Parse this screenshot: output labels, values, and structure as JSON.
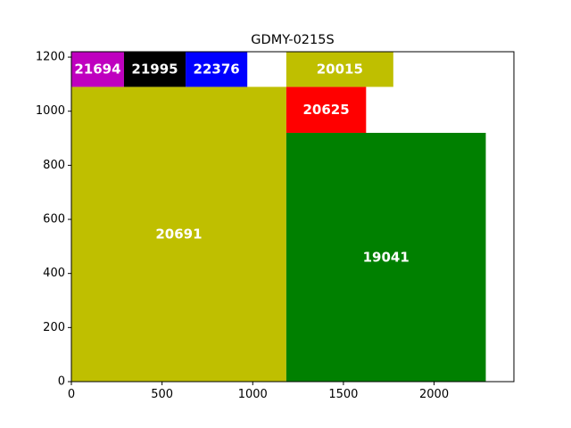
{
  "chart_data": {
    "type": "rectangle-packing",
    "title": "GDMY-0215S",
    "xlabel": "",
    "ylabel": "",
    "xlim": [
      0,
      2440
    ],
    "ylim": [
      0,
      1220
    ],
    "xticks": [
      0,
      500,
      1000,
      1500,
      2000
    ],
    "yticks": [
      0,
      200,
      400,
      600,
      800,
      1000,
      1200
    ],
    "grid": false,
    "rectangles": [
      {
        "label": "20691",
        "x": 0,
        "y": 0,
        "width": 1185,
        "height": 1090,
        "color": "#bfbf00"
      },
      {
        "label": "19041",
        "x": 1185,
        "y": 0,
        "width": 1100,
        "height": 920,
        "color": "#008000"
      },
      {
        "label": "20625",
        "x": 1185,
        "y": 920,
        "width": 440,
        "height": 170,
        "color": "#ff0000"
      },
      {
        "label": "20015",
        "x": 1185,
        "y": 1090,
        "width": 590,
        "height": 130,
        "color": "#bfbf00"
      },
      {
        "label": "21694",
        "x": 0,
        "y": 1090,
        "width": 290,
        "height": 130,
        "color": "#bf00bf"
      },
      {
        "label": "21995",
        "x": 290,
        "y": 1090,
        "width": 340,
        "height": 130,
        "color": "#000000"
      },
      {
        "label": "22376",
        "x": 630,
        "y": 1090,
        "width": 340,
        "height": 130,
        "color": "#0000ff"
      }
    ]
  }
}
